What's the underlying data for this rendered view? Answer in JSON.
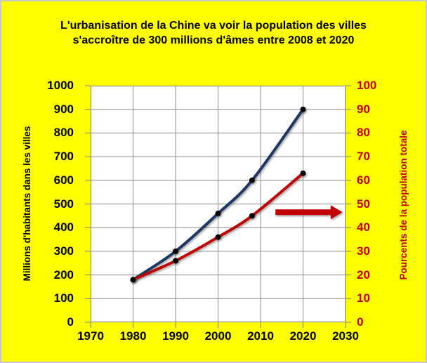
{
  "title": {
    "line1": "L'urbanisation de la Chine va voir la population des villes",
    "line2": "s'accroître de 300 millions d'âmes entre 2008 et 2020"
  },
  "colors": {
    "background": "#FFFF00",
    "plot_background": "#FFFFFF",
    "grid": "#8C8C8C",
    "axis_frame": "#7F7F7F",
    "title_text": "#000000",
    "left_axis_text": "#000020",
    "right_axis_text": "#C00000",
    "x_axis_text": "#000000",
    "urban_line": "#1F3864",
    "percent_line": "#C00000",
    "marker": "#000000",
    "arrow": "#C00000"
  },
  "chart_data": {
    "type": "line",
    "title": "L'urbanisation de la Chine va voir la population des villes s'accroître de 300 millions d'âmes entre 2008 et 2020",
    "x": [
      1980,
      1990,
      2000,
      2008,
      2020
    ],
    "series": [
      {
        "name": "Millions d'habitants dans les villes",
        "axis": "left",
        "values": [
          180,
          300,
          460,
          600,
          900
        ],
        "color": "#1F3864",
        "marker": "black-circle"
      },
      {
        "name": "Pourcents de la population totale",
        "axis": "right",
        "values": [
          18,
          26,
          36,
          45,
          63
        ],
        "color": "#C00000",
        "marker": "black-circle"
      }
    ],
    "x_axis": {
      "range": [
        1970,
        2030
      ],
      "ticks": [
        1970,
        1980,
        1990,
        2000,
        2010,
        2020,
        2030
      ]
    },
    "left_axis": {
      "label": "Millions d'habitants dans les villes",
      "range": [
        0,
        1000
      ],
      "ticks": [
        0,
        100,
        200,
        300,
        400,
        500,
        600,
        700,
        800,
        900,
        1000
      ]
    },
    "right_axis": {
      "label": "Pourcents de la population totale",
      "range": [
        0,
        100
      ],
      "ticks": [
        0,
        10,
        20,
        30,
        40,
        50,
        60,
        70,
        80,
        90,
        100
      ]
    },
    "grid": true,
    "smooth_lines": true,
    "legend": "none",
    "annotation": {
      "shape": "arrow-right",
      "y_right_axis": 46.5,
      "from_year": 2013.5,
      "to_year": 2029.3,
      "color": "#C00000"
    }
  }
}
